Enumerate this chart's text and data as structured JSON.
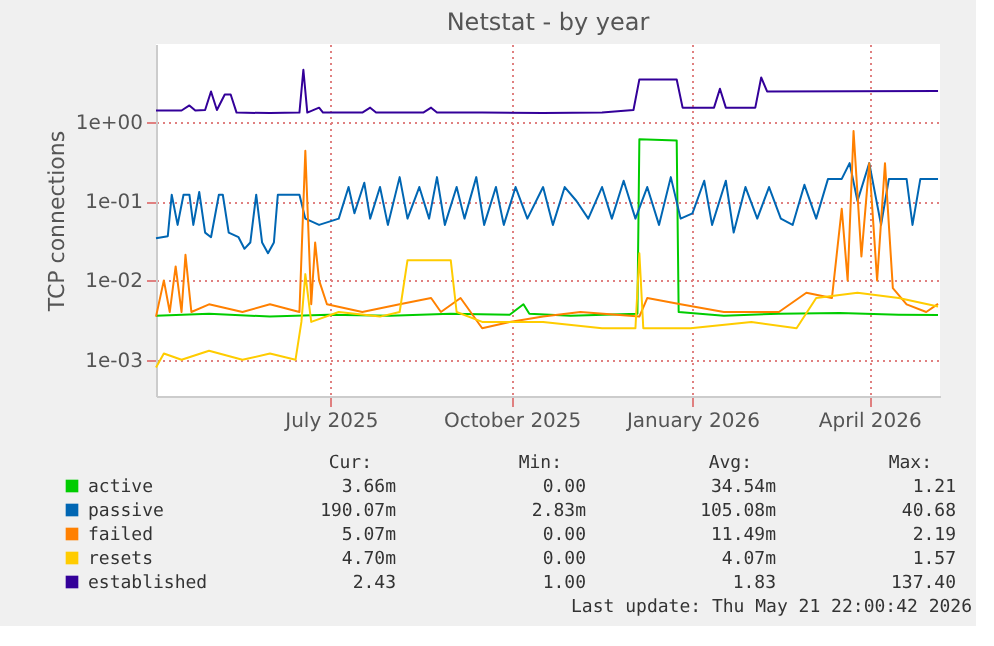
{
  "chart_data": {
    "type": "line",
    "title": "Netstat - by year",
    "ylabel": "TCP connections",
    "log": true,
    "grid": true,
    "legend": "bottom",
    "xlim": [
      "2025-04-18",
      "2026-05-22"
    ],
    "xticks": [
      {
        "value": "2025-07-16",
        "label": "July 2025"
      },
      {
        "value": "2025-10-16",
        "label": "October 2025"
      },
      {
        "value": "2026-01-16",
        "label": "January 2026"
      },
      {
        "value": "2026-04-16",
        "label": "April 2026"
      }
    ],
    "ylim": [
      0.00035,
      9.5
    ],
    "yticks": [
      {
        "value": 0.001,
        "label": "1e-03"
      },
      {
        "value": 0.01,
        "label": "1e-02"
      },
      {
        "value": 0.1,
        "label": "1e-01"
      },
      {
        "value": 1,
        "label": "1e+00"
      }
    ],
    "series": [
      {
        "name": "active",
        "color": "#00cc00",
        "x": [
          "2025-04-18",
          "2025-05-15",
          "2025-06-15",
          "2025-07-15",
          "2025-08-15",
          "2025-09-15",
          "2025-10-15",
          "2025-10-22",
          "2025-10-25",
          "2025-11-15",
          "2025-12-19",
          "2025-12-20",
          "2026-01-08",
          "2026-01-09",
          "2026-02-01",
          "2026-03-01",
          "2026-04-01",
          "2026-05-01",
          "2026-05-21"
        ],
        "values": [
          0.0036,
          0.0038,
          0.0035,
          0.0037,
          0.0036,
          0.0038,
          0.0037,
          0.005,
          0.0038,
          0.0036,
          0.0038,
          0.6,
          0.58,
          0.004,
          0.0036,
          0.0038,
          0.0039,
          0.0037,
          0.00366
        ]
      },
      {
        "name": "passive",
        "color": "#0066b3",
        "x": [
          "2025-04-18",
          "2025-04-24",
          "2025-04-26",
          "2025-04-29",
          "2025-05-02",
          "2025-05-05",
          "2025-05-07",
          "2025-05-10",
          "2025-05-13",
          "2025-05-16",
          "2025-05-20",
          "2025-05-22",
          "2025-05-25",
          "2025-05-30",
          "2025-06-02",
          "2025-06-05",
          "2025-06-08",
          "2025-06-11",
          "2025-06-14",
          "2025-06-17",
          "2025-06-19",
          "2025-06-30",
          "2025-07-03",
          "2025-07-10",
          "2025-07-20",
          "2025-07-25",
          "2025-07-28",
          "2025-08-02",
          "2025-08-05",
          "2025-08-10",
          "2025-08-14",
          "2025-08-20",
          "2025-08-24",
          "2025-08-30",
          "2025-09-04",
          "2025-09-08",
          "2025-09-12",
          "2025-09-18",
          "2025-09-22",
          "2025-09-28",
          "2025-10-02",
          "2025-10-08",
          "2025-10-12",
          "2025-10-18",
          "2025-10-24",
          "2025-11-01",
          "2025-11-06",
          "2025-11-12",
          "2025-11-18",
          "2025-11-24",
          "2025-12-01",
          "2025-12-06",
          "2025-12-12",
          "2025-12-18",
          "2025-12-24",
          "2025-12-30",
          "2026-01-05",
          "2026-01-10",
          "2026-01-16",
          "2026-01-22",
          "2026-01-26",
          "2026-02-02",
          "2026-02-06",
          "2026-02-12",
          "2026-02-18",
          "2026-02-24",
          "2026-03-02",
          "2026-03-08",
          "2026-03-14",
          "2026-03-20",
          "2026-03-26",
          "2026-04-02",
          "2026-04-06",
          "2026-04-10",
          "2026-04-16",
          "2026-04-22",
          "2026-04-26",
          "2026-05-05",
          "2026-05-08",
          "2026-05-12",
          "2026-05-21"
        ],
        "values": [
          0.034,
          0.036,
          0.12,
          0.05,
          0.12,
          0.12,
          0.05,
          0.13,
          0.04,
          0.035,
          0.12,
          0.12,
          0.04,
          0.035,
          0.025,
          0.03,
          0.12,
          0.03,
          0.022,
          0.03,
          0.12,
          0.12,
          0.06,
          0.05,
          0.06,
          0.15,
          0.07,
          0.17,
          0.06,
          0.15,
          0.05,
          0.2,
          0.06,
          0.15,
          0.06,
          0.2,
          0.05,
          0.15,
          0.06,
          0.2,
          0.05,
          0.15,
          0.05,
          0.15,
          0.06,
          0.15,
          0.05,
          0.15,
          0.1,
          0.06,
          0.15,
          0.06,
          0.18,
          0.06,
          0.15,
          0.05,
          0.2,
          0.06,
          0.07,
          0.18,
          0.05,
          0.18,
          0.04,
          0.15,
          0.06,
          0.15,
          0.06,
          0.05,
          0.16,
          0.06,
          0.19,
          0.19,
          0.3,
          0.1,
          0.3,
          0.05,
          0.19,
          0.19,
          0.05,
          0.19,
          0.19
        ]
      },
      {
        "name": "failed",
        "color": "#ff8000",
        "x": [
          "2025-04-18",
          "2025-04-22",
          "2025-04-25",
          "2025-04-28",
          "2025-05-01",
          "2025-05-03",
          "2025-05-06",
          "2025-05-15",
          "2025-06-01",
          "2025-06-15",
          "2025-06-30",
          "2025-07-03",
          "2025-07-06",
          "2025-07-08",
          "2025-07-10",
          "2025-07-14",
          "2025-08-01",
          "2025-08-20",
          "2025-09-05",
          "2025-09-10",
          "2025-09-20",
          "2025-10-01",
          "2025-10-15",
          "2025-11-01",
          "2025-11-20",
          "2025-12-20",
          "2025-12-24",
          "2026-01-10",
          "2026-02-01",
          "2026-03-01",
          "2026-03-15",
          "2026-03-28",
          "2026-04-02",
          "2026-04-05",
          "2026-04-08",
          "2026-04-12",
          "2026-04-16",
          "2026-04-20",
          "2026-04-24",
          "2026-04-28",
          "2026-05-05",
          "2026-05-15",
          "2026-05-21"
        ],
        "values": [
          0.0035,
          0.01,
          0.004,
          0.015,
          0.004,
          0.021,
          0.004,
          0.005,
          0.004,
          0.005,
          0.004,
          0.43,
          0.005,
          0.03,
          0.01,
          0.005,
          0.004,
          0.005,
          0.006,
          0.004,
          0.006,
          0.0025,
          0.003,
          0.0035,
          0.004,
          0.0035,
          0.006,
          0.005,
          0.004,
          0.004,
          0.007,
          0.006,
          0.08,
          0.01,
          0.76,
          0.02,
          0.3,
          0.01,
          0.3,
          0.008,
          0.005,
          0.004,
          0.00507
        ]
      },
      {
        "name": "resets",
        "color": "#ffcc00",
        "x": [
          "2025-04-18",
          "2025-04-22",
          "2025-05-01",
          "2025-05-15",
          "2025-06-01",
          "2025-06-15",
          "2025-06-28",
          "2025-07-01",
          "2025-07-03",
          "2025-07-06",
          "2025-07-20",
          "2025-08-10",
          "2025-08-20",
          "2025-08-24",
          "2025-09-15",
          "2025-09-18",
          "2025-10-01",
          "2025-11-01",
          "2025-12-01",
          "2025-12-18",
          "2025-12-20",
          "2025-12-22",
          "2026-01-15",
          "2026-02-15",
          "2026-03-10",
          "2026-03-20",
          "2026-04-10",
          "2026-05-01",
          "2026-05-21"
        ],
        "values": [
          0.0008,
          0.0012,
          0.001,
          0.0013,
          0.001,
          0.0012,
          0.001,
          0.003,
          0.012,
          0.003,
          0.004,
          0.0035,
          0.004,
          0.018,
          0.018,
          0.004,
          0.003,
          0.003,
          0.0025,
          0.0025,
          0.022,
          0.0025,
          0.0025,
          0.003,
          0.0025,
          0.006,
          0.007,
          0.006,
          0.0047
        ]
      },
      {
        "name": "established",
        "color": "#330099",
        "x": [
          "2025-04-18",
          "2025-05-01",
          "2025-05-05",
          "2025-05-08",
          "2025-05-13",
          "2025-05-16",
          "2025-05-19",
          "2025-05-23",
          "2025-05-26",
          "2025-05-29",
          "2025-06-15",
          "2025-06-30",
          "2025-07-02",
          "2025-07-04",
          "2025-07-10",
          "2025-07-12",
          "2025-08-01",
          "2025-08-05",
          "2025-08-08",
          "2025-09-01",
          "2025-09-05",
          "2025-09-08",
          "2025-10-01",
          "2025-11-01",
          "2025-12-01",
          "2025-12-17",
          "2025-12-20",
          "2026-01-08",
          "2026-01-11",
          "2026-01-27",
          "2026-01-30",
          "2026-02-02",
          "2026-02-17",
          "2026-02-20",
          "2026-02-23",
          "2026-05-21"
        ],
        "values": [
          1.38,
          1.38,
          1.6,
          1.38,
          1.4,
          2.4,
          1.4,
          2.2,
          2.2,
          1.3,
          1.28,
          1.3,
          4.5,
          1.3,
          1.5,
          1.3,
          1.3,
          1.5,
          1.3,
          1.3,
          1.5,
          1.3,
          1.3,
          1.28,
          1.3,
          1.4,
          3.4,
          3.4,
          1.5,
          1.5,
          2.6,
          1.5,
          1.5,
          3.6,
          2.4,
          2.43
        ]
      }
    ],
    "annotations": [
      "Cur:",
      "Min:",
      "Avg:",
      "Max:",
      "3.66m",
      "0.00",
      "34.54m",
      "1.21",
      "190.07m",
      "2.83m",
      "105.08m",
      "40.68",
      "5.07m",
      "0.00",
      "11.49m",
      "2.19",
      "4.70m",
      "0.00",
      "4.07m",
      "1.57",
      "2.43",
      "1.00",
      "1.83",
      "137.40",
      "Last update: Thu May 21 22:00:42 2026"
    ]
  }
}
